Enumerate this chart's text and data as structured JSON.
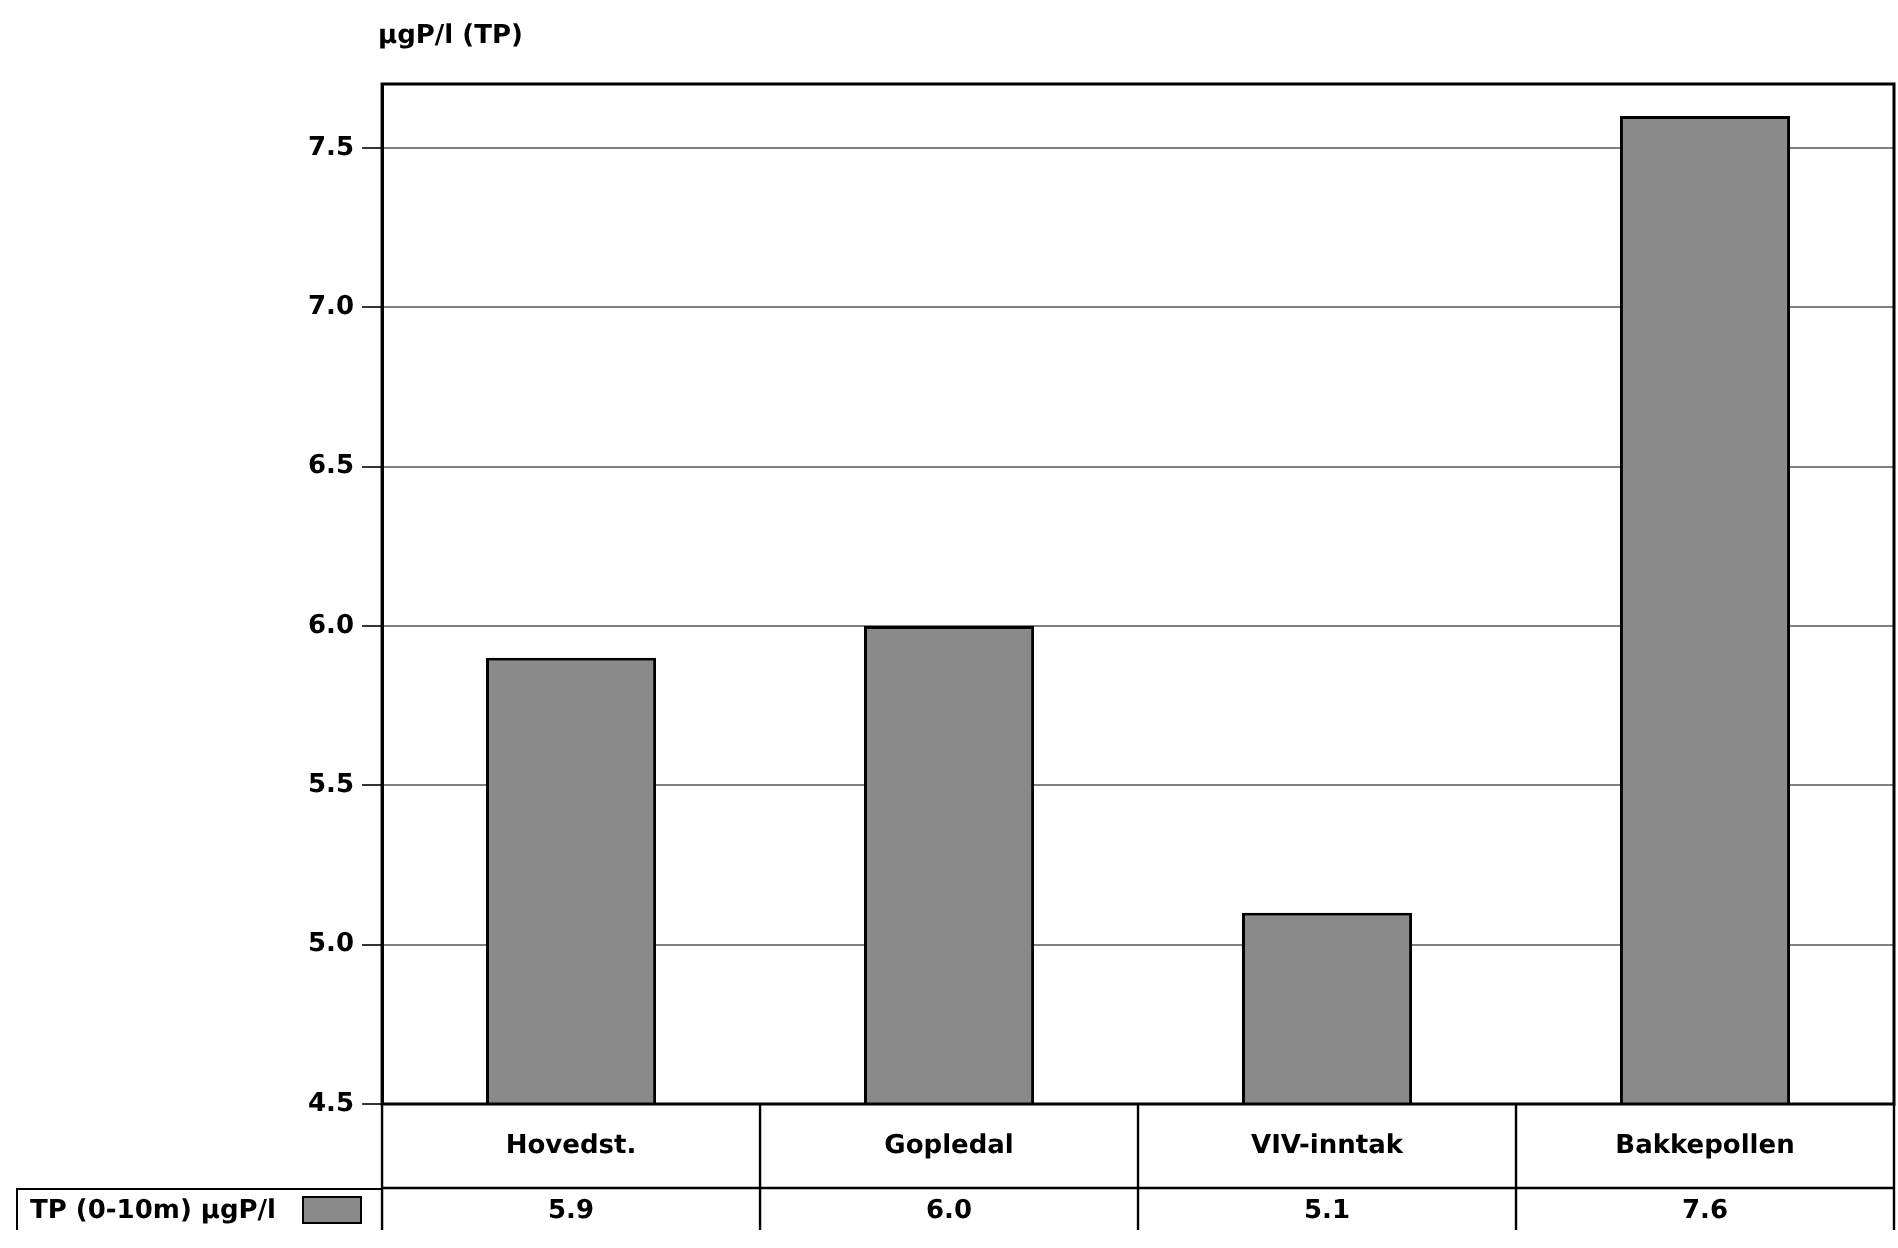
{
  "chart_data": {
    "type": "bar",
    "ylabel": "µgP/l (TP)",
    "categories": [
      "Hovedst.",
      "Gopledal",
      "VIV-inntak",
      "Bakkepollen"
    ],
    "series": [
      {
        "name": "TP (0-10m) µgP/l",
        "color": "#8a8a8a",
        "values": [
          5.9,
          6.0,
          5.1,
          7.6
        ],
        "value_labels": [
          "5.9",
          "6.0",
          "5.1",
          "7.6"
        ]
      }
    ],
    "ylim": [
      4.5,
      7.7
    ],
    "yticks": [
      4.5,
      {
        "value": 5,
        "label": "5.0"
      },
      5.5,
      {
        "value": 6,
        "label": "6.0"
      },
      6.5,
      {
        "value": 7,
        "label": "7.0"
      },
      7.5
    ],
    "grid": "y",
    "legend": "bottom left"
  }
}
